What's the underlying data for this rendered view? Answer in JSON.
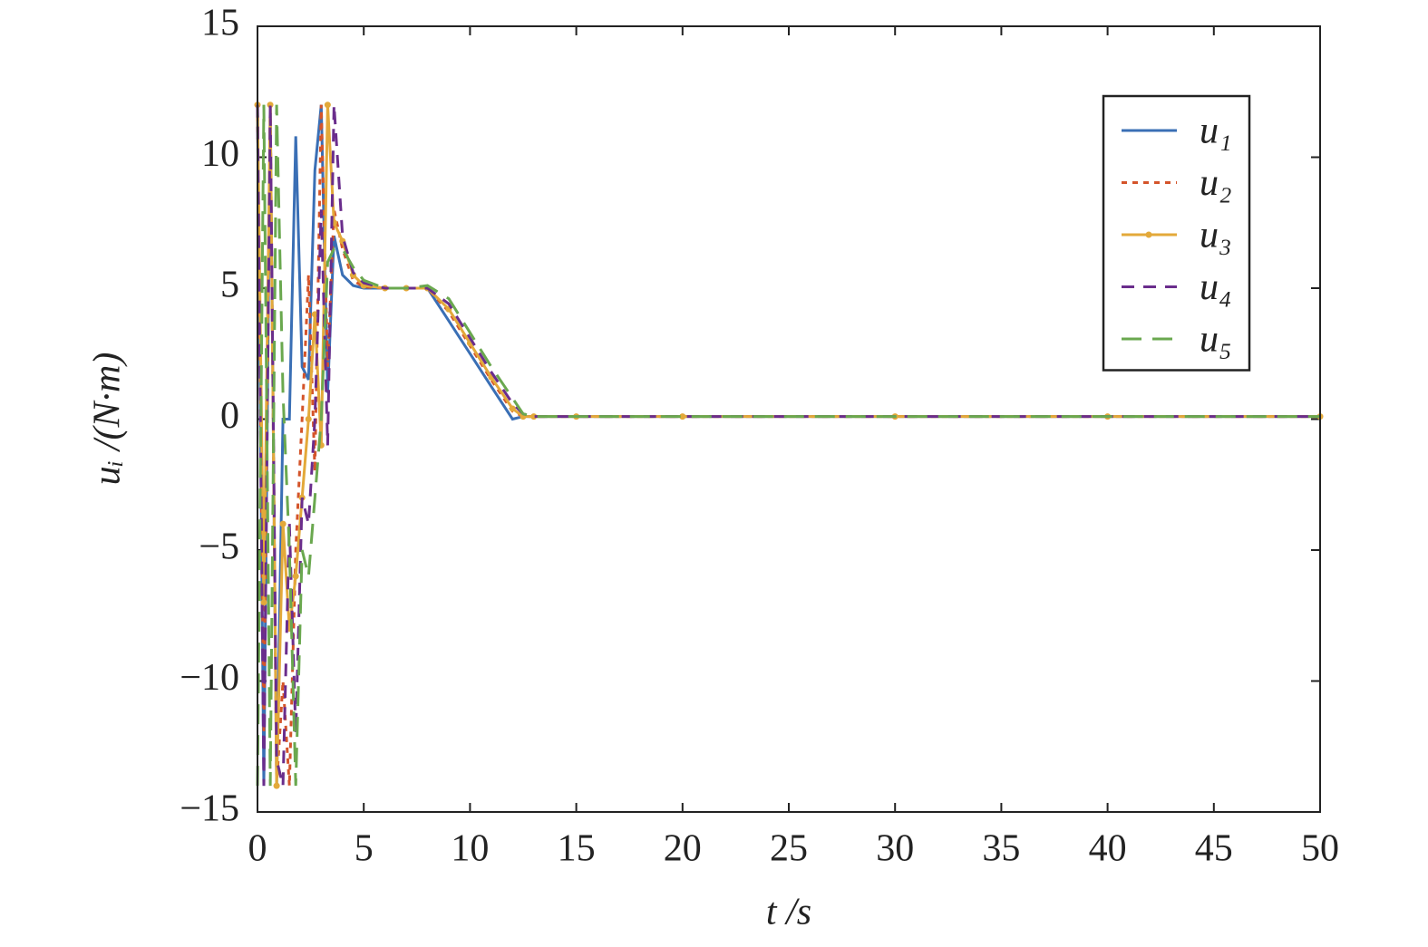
{
  "chart_data": {
    "type": "line",
    "xlabel": "t /s",
    "ylabel": "uᵢ /(N·m)",
    "x": [
      0,
      0.3,
      0.6,
      0.9,
      1.2,
      1.5,
      1.8,
      2.1,
      2.4,
      2.7,
      3.0,
      3.3,
      3.6,
      4,
      4.5,
      5,
      6,
      7,
      8,
      9,
      10,
      11,
      12,
      12.5,
      13,
      15,
      20,
      30,
      40,
      50
    ],
    "series": [
      {
        "name": "u₁",
        "color": "#3a6fb5",
        "dash": "solid",
        "values": [
          12,
          -14,
          12,
          -14,
          0,
          0,
          10.8,
          2,
          1.5,
          9.5,
          12,
          1,
          7,
          5.5,
          5.1,
          5,
          5,
          5,
          5,
          3.75,
          2.5,
          1.25,
          0,
          0.1,
          0.1,
          0.1,
          0.1,
          0.1,
          0.1,
          0.1
        ]
      },
      {
        "name": "u₂",
        "color": "#d4542a",
        "dash": "dotted",
        "values": [
          12,
          -12,
          12,
          -14,
          -10,
          -14,
          -5,
          0,
          5.5,
          -2,
          12,
          2,
          8,
          6.5,
          5.3,
          5.05,
          5,
          5,
          5,
          4.1,
          2.8,
          1.5,
          0.3,
          0.1,
          0.1,
          0.1,
          0.1,
          0.1,
          0.1,
          0.1
        ]
      },
      {
        "name": "u₃",
        "color": "#e3a93a",
        "dash": "solid",
        "marker": "dot",
        "values": [
          12,
          -7,
          12,
          -14,
          -4,
          -8,
          -6,
          -3,
          0,
          4,
          -1,
          12,
          7.5,
          6.8,
          5.5,
          5.1,
          5,
          5,
          5,
          4.2,
          2.9,
          1.6,
          0.4,
          0.1,
          0.1,
          0.1,
          0.1,
          0.1,
          0.1,
          0.1
        ]
      },
      {
        "name": "u₄",
        "color": "#6a2d8c",
        "dash": "dashed",
        "values": [
          12,
          -14,
          12,
          -13,
          -14,
          -4,
          -12,
          -3,
          -4,
          0,
          8,
          -1,
          12,
          7,
          5.6,
          5.2,
          5,
          5,
          5,
          4.4,
          3.1,
          1.8,
          0.6,
          0.2,
          0.1,
          0.1,
          0.1,
          0.1,
          0.1,
          0.1
        ]
      },
      {
        "name": "u₅",
        "color": "#6aa84f",
        "dash": "longdash",
        "values": [
          -14,
          12,
          -14,
          12,
          1,
          -5,
          -14,
          -5,
          -6,
          -3,
          0,
          6,
          6.5,
          6.5,
          5.8,
          5.3,
          5,
          5,
          5.1,
          4.6,
          3.3,
          2,
          0.8,
          0.2,
          0.1,
          0.1,
          0.1,
          0.1,
          0.1,
          0.1
        ]
      }
    ],
    "xlim": [
      0,
      50
    ],
    "xticks": [
      0,
      5,
      10,
      15,
      20,
      25,
      30,
      35,
      40,
      45,
      50
    ],
    "ylim": [
      -15,
      15
    ],
    "yticks": [
      {
        "value": -15,
        "label": "−15"
      },
      {
        "value": -10,
        "label": "−10"
      },
      {
        "value": -5,
        "label": "−5"
      },
      0,
      5,
      10,
      15
    ],
    "grid": false,
    "legend": "upper right"
  }
}
